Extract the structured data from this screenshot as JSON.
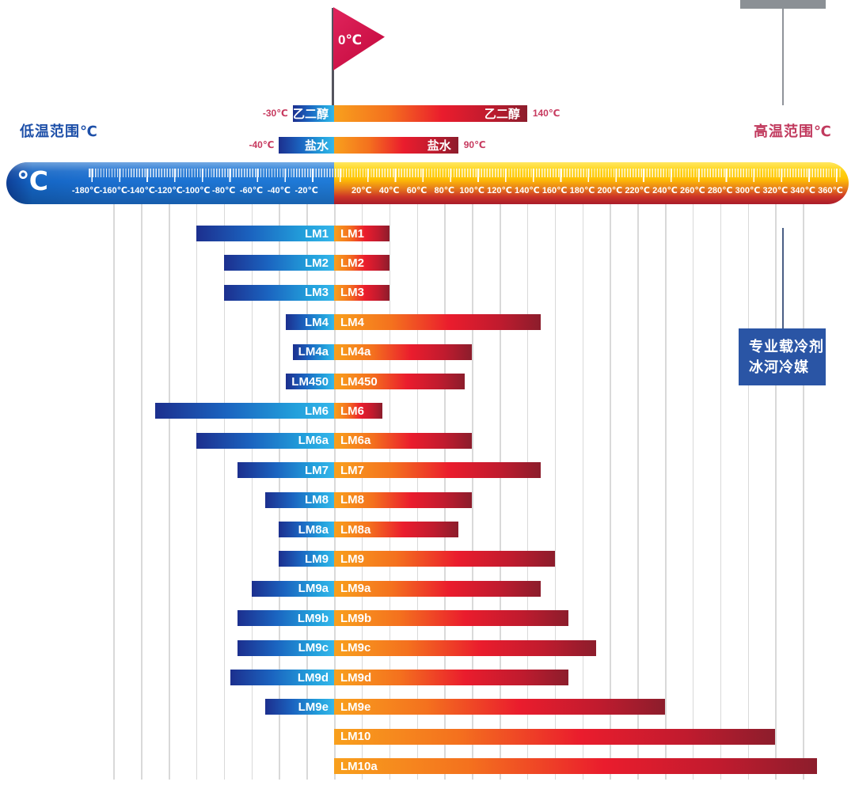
{
  "page": {
    "low_range_label": "低温范围℃",
    "high_range_label": "高温范围℃"
  },
  "flag": {
    "label": "0℃"
  },
  "side_panel": {
    "line1": "专业载冷剂",
    "line2": "冰河冷媒"
  },
  "colors": {
    "flag_red": "#d2164a",
    "low_label_blue": "#1d4fa8",
    "high_label_red": "#c13a5e",
    "panel_blue": "#2a55a5",
    "gray_box": "#8b9095",
    "cold_gradient_start": "#1c2f8e",
    "cold_gradient_end": "#35b6ea",
    "warm_gradient_start": "#f8a01d",
    "warm_gradient_mid": "#ea1c2d",
    "warm_gradient_end": "#8c1d2c",
    "ruler_yellow": "#ffd900",
    "ruler_red": "#cd2133",
    "ruler_blue": "#1b6fd0",
    "gridline_gray": "#d9d9d9"
  },
  "chart_data": {
    "type": "bar",
    "subtype": "temperature-range-bars",
    "unit": "℃",
    "axis": {
      "min": -180,
      "max": 360,
      "step": 20,
      "unit": "℃",
      "zero_marker": "0℃",
      "tick_labels": [
        "-180℃",
        "-160℃",
        "-140℃",
        "-120℃",
        "-100℃",
        "-80℃",
        "-60℃",
        "-40℃",
        "-20℃",
        "20℃",
        "40℃",
        "60℃",
        "80℃",
        "100℃",
        "120℃",
        "140℃",
        "160℃",
        "180℃",
        "200℃",
        "220℃",
        "240℃",
        "260℃",
        "280℃",
        "300℃",
        "320℃",
        "340℃",
        "360℃"
      ]
    },
    "gridlines": {
      "from": -160,
      "to": 340,
      "step": 20
    },
    "references": [
      {
        "name": "乙二醇",
        "min": -30,
        "max": 140,
        "min_label": "-30℃",
        "max_label": "140℃"
      },
      {
        "name": "盐水",
        "min": -40,
        "max": 90,
        "min_label": "-40℃",
        "max_label": "90℃"
      }
    ],
    "series": [
      {
        "name": "LM1",
        "min": -100,
        "max": 40
      },
      {
        "name": "LM2",
        "min": -80,
        "max": 40
      },
      {
        "name": "LM3",
        "min": -80,
        "max": 40
      },
      {
        "name": "LM4",
        "min": -35,
        "max": 150
      },
      {
        "name": "LM4a",
        "min": -30,
        "max": 100
      },
      {
        "name": "LM450",
        "min": -35,
        "max": 95
      },
      {
        "name": "LM6",
        "min": -130,
        "max": 35
      },
      {
        "name": "LM6a",
        "min": -100,
        "max": 100
      },
      {
        "name": "LM7",
        "min": -70,
        "max": 150
      },
      {
        "name": "LM8",
        "min": -50,
        "max": 100
      },
      {
        "name": "LM8a",
        "min": -40,
        "max": 90
      },
      {
        "name": "LM9",
        "min": -40,
        "max": 160
      },
      {
        "name": "LM9a",
        "min": -60,
        "max": 150
      },
      {
        "name": "LM9b",
        "min": -70,
        "max": 170
      },
      {
        "name": "LM9c",
        "min": -70,
        "max": 190
      },
      {
        "name": "LM9d",
        "min": -75,
        "max": 170
      },
      {
        "name": "LM9e",
        "min": -50,
        "max": 240
      },
      {
        "name": "LM10",
        "min": 0,
        "max": 320
      },
      {
        "name": "LM10a",
        "min": 0,
        "max": 350
      }
    ]
  }
}
